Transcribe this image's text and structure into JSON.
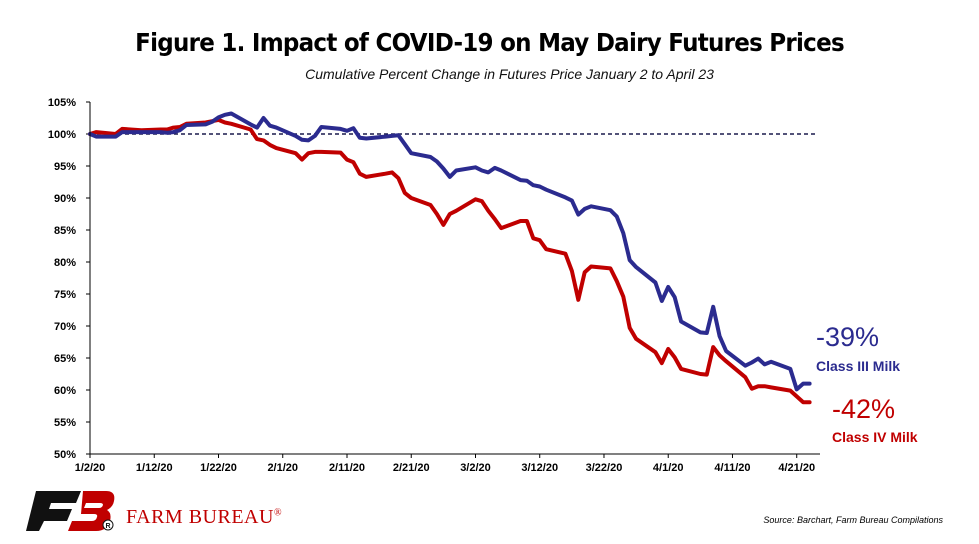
{
  "title": "Figure 1. Impact of COVID-19 on May Dairy Futures Prices",
  "subtitle": "Cumulative Percent Change in Futures Price January 2 to April 23",
  "source": "Source: Barchart, Farm Bureau Compilations",
  "logo": {
    "text": "FARM BUREAU",
    "mark": "®"
  },
  "colors": {
    "class3": "#2b2b8f",
    "class4": "#c00000",
    "reference": "#1a1a4d"
  },
  "chart_data": {
    "type": "line",
    "title": "Figure 1. Impact of COVID-19 on May Dairy Futures Prices",
    "subtitle": "Cumulative Percent Change in Futures Price January 2 to April 23",
    "xlabel": "",
    "ylabel": "",
    "x_ticks": [
      "1/2/20",
      "1/12/20",
      "1/22/20",
      "2/1/20",
      "2/11/20",
      "2/21/20",
      "3/2/20",
      "3/12/20",
      "3/22/20",
      "4/1/20",
      "4/11/20",
      "4/21/20"
    ],
    "y_ticks": [
      "105%",
      "100%",
      "95%",
      "90%",
      "85%",
      "80%",
      "75%",
      "70%",
      "65%",
      "60%",
      "55%",
      "50%"
    ],
    "ylim": [
      50,
      105
    ],
    "xlim": [
      "2020-01-02",
      "2020-04-24"
    ],
    "reference_line": 100,
    "series": [
      {
        "name": "Class III Milk",
        "end_label": "-39%",
        "points": [
          [
            "2020-01-02",
            100.0
          ],
          [
            "2020-01-03",
            99.6
          ],
          [
            "2020-01-06",
            99.6
          ],
          [
            "2020-01-07",
            100.3
          ],
          [
            "2020-01-10",
            100.3
          ],
          [
            "2020-01-13",
            100.3
          ],
          [
            "2020-01-14",
            100.2
          ],
          [
            "2020-01-15",
            100.3
          ],
          [
            "2020-01-16",
            100.6
          ],
          [
            "2020-01-17",
            101.4
          ],
          [
            "2020-01-20",
            101.5
          ],
          [
            "2020-01-21",
            101.9
          ],
          [
            "2020-01-22",
            102.6
          ],
          [
            "2020-01-23",
            103.0
          ],
          [
            "2020-01-24",
            103.2
          ],
          [
            "2020-01-27",
            101.5
          ],
          [
            "2020-01-28",
            101.0
          ],
          [
            "2020-01-29",
            102.5
          ],
          [
            "2020-01-30",
            101.3
          ],
          [
            "2020-01-31",
            101.0
          ],
          [
            "2020-02-03",
            99.7
          ],
          [
            "2020-02-04",
            99.1
          ],
          [
            "2020-02-05",
            99.0
          ],
          [
            "2020-02-06",
            99.7
          ],
          [
            "2020-02-07",
            101.1
          ],
          [
            "2020-02-10",
            100.8
          ],
          [
            "2020-02-11",
            100.5
          ],
          [
            "2020-02-12",
            100.9
          ],
          [
            "2020-02-13",
            99.4
          ],
          [
            "2020-02-14",
            99.3
          ],
          [
            "2020-02-17",
            99.6
          ],
          [
            "2020-02-18",
            99.7
          ],
          [
            "2020-02-19",
            99.8
          ],
          [
            "2020-02-20",
            98.4
          ],
          [
            "2020-02-21",
            97.0
          ],
          [
            "2020-02-24",
            96.4
          ],
          [
            "2020-02-25",
            95.7
          ],
          [
            "2020-02-26",
            94.6
          ],
          [
            "2020-02-27",
            93.3
          ],
          [
            "2020-02-28",
            94.3
          ],
          [
            "2020-03-02",
            94.8
          ],
          [
            "2020-03-03",
            94.3
          ],
          [
            "2020-03-04",
            94.0
          ],
          [
            "2020-03-05",
            94.7
          ],
          [
            "2020-03-06",
            94.3
          ],
          [
            "2020-03-09",
            92.8
          ],
          [
            "2020-03-10",
            92.7
          ],
          [
            "2020-03-11",
            92.0
          ],
          [
            "2020-03-12",
            91.8
          ],
          [
            "2020-03-13",
            91.3
          ],
          [
            "2020-03-16",
            90.1
          ],
          [
            "2020-03-17",
            89.6
          ],
          [
            "2020-03-18",
            87.4
          ],
          [
            "2020-03-19",
            88.3
          ],
          [
            "2020-03-20",
            88.7
          ],
          [
            "2020-03-23",
            88.1
          ],
          [
            "2020-03-24",
            87.1
          ],
          [
            "2020-03-25",
            84.5
          ],
          [
            "2020-03-26",
            80.3
          ],
          [
            "2020-03-27",
            79.2
          ],
          [
            "2020-03-30",
            76.8
          ],
          [
            "2020-03-31",
            73.9
          ],
          [
            "2020-04-01",
            76.1
          ],
          [
            "2020-04-02",
            74.5
          ],
          [
            "2020-04-03",
            70.7
          ],
          [
            "2020-04-06",
            69.0
          ],
          [
            "2020-04-07",
            68.9
          ],
          [
            "2020-04-08",
            73.0
          ],
          [
            "2020-04-09",
            68.4
          ],
          [
            "2020-04-10",
            66.1
          ],
          [
            "2020-04-13",
            63.8
          ],
          [
            "2020-04-14",
            64.3
          ],
          [
            "2020-04-15",
            64.9
          ],
          [
            "2020-04-16",
            64.0
          ],
          [
            "2020-04-17",
            64.4
          ],
          [
            "2020-04-20",
            63.3
          ],
          [
            "2020-04-21",
            60.1
          ],
          [
            "2020-04-22",
            61.0
          ],
          [
            "2020-04-23",
            61.0
          ]
        ]
      },
      {
        "name": "Class IV Milk",
        "end_label": "-42%",
        "points": [
          [
            "2020-01-02",
            100.0
          ],
          [
            "2020-01-03",
            100.3
          ],
          [
            "2020-01-06",
            100.0
          ],
          [
            "2020-01-07",
            100.8
          ],
          [
            "2020-01-10",
            100.6
          ],
          [
            "2020-01-13",
            100.7
          ],
          [
            "2020-01-14",
            100.7
          ],
          [
            "2020-01-15",
            101.0
          ],
          [
            "2020-01-16",
            101.1
          ],
          [
            "2020-01-17",
            101.6
          ],
          [
            "2020-01-20",
            101.8
          ],
          [
            "2020-01-21",
            102.0
          ],
          [
            "2020-01-22",
            102.2
          ],
          [
            "2020-01-23",
            101.8
          ],
          [
            "2020-01-24",
            101.6
          ],
          [
            "2020-01-27",
            100.7
          ],
          [
            "2020-01-28",
            99.2
          ],
          [
            "2020-01-29",
            99.0
          ],
          [
            "2020-01-30",
            98.3
          ],
          [
            "2020-01-31",
            97.8
          ],
          [
            "2020-02-03",
            97.0
          ],
          [
            "2020-02-04",
            96.0
          ],
          [
            "2020-02-05",
            97.0
          ],
          [
            "2020-02-06",
            97.2
          ],
          [
            "2020-02-07",
            97.2
          ],
          [
            "2020-02-10",
            97.1
          ],
          [
            "2020-02-11",
            96.0
          ],
          [
            "2020-02-12",
            95.6
          ],
          [
            "2020-02-13",
            93.8
          ],
          [
            "2020-02-14",
            93.3
          ],
          [
            "2020-02-17",
            93.8
          ],
          [
            "2020-02-18",
            94.0
          ],
          [
            "2020-02-19",
            93.1
          ],
          [
            "2020-02-20",
            90.8
          ],
          [
            "2020-02-21",
            90.0
          ],
          [
            "2020-02-24",
            88.9
          ],
          [
            "2020-02-25",
            87.5
          ],
          [
            "2020-02-26",
            85.8
          ],
          [
            "2020-02-27",
            87.5
          ],
          [
            "2020-02-28",
            88.0
          ],
          [
            "2020-03-02",
            89.8
          ],
          [
            "2020-03-03",
            89.5
          ],
          [
            "2020-03-04",
            88.0
          ],
          [
            "2020-03-05",
            86.7
          ],
          [
            "2020-03-06",
            85.3
          ],
          [
            "2020-03-09",
            86.4
          ],
          [
            "2020-03-10",
            86.4
          ],
          [
            "2020-03-11",
            83.7
          ],
          [
            "2020-03-12",
            83.4
          ],
          [
            "2020-03-13",
            82.0
          ],
          [
            "2020-03-16",
            81.3
          ],
          [
            "2020-03-17",
            78.6
          ],
          [
            "2020-03-18",
            74.1
          ],
          [
            "2020-03-19",
            78.4
          ],
          [
            "2020-03-20",
            79.3
          ],
          [
            "2020-03-23",
            79.0
          ],
          [
            "2020-03-24",
            77.0
          ],
          [
            "2020-03-25",
            74.6
          ],
          [
            "2020-03-26",
            69.7
          ],
          [
            "2020-03-27",
            68.0
          ],
          [
            "2020-03-30",
            65.9
          ],
          [
            "2020-03-31",
            64.2
          ],
          [
            "2020-04-01",
            66.4
          ],
          [
            "2020-04-02",
            65.1
          ],
          [
            "2020-04-03",
            63.3
          ],
          [
            "2020-04-06",
            62.5
          ],
          [
            "2020-04-07",
            62.4
          ],
          [
            "2020-04-08",
            66.7
          ],
          [
            "2020-04-09",
            65.4
          ],
          [
            "2020-04-10",
            64.5
          ],
          [
            "2020-04-13",
            62.0
          ],
          [
            "2020-04-14",
            60.2
          ],
          [
            "2020-04-15",
            60.6
          ],
          [
            "2020-04-16",
            60.6
          ],
          [
            "2020-04-17",
            60.4
          ],
          [
            "2020-04-20",
            59.9
          ],
          [
            "2020-04-21",
            59.0
          ],
          [
            "2020-04-22",
            58.1
          ],
          [
            "2020-04-23",
            58.1
          ]
        ]
      }
    ]
  }
}
